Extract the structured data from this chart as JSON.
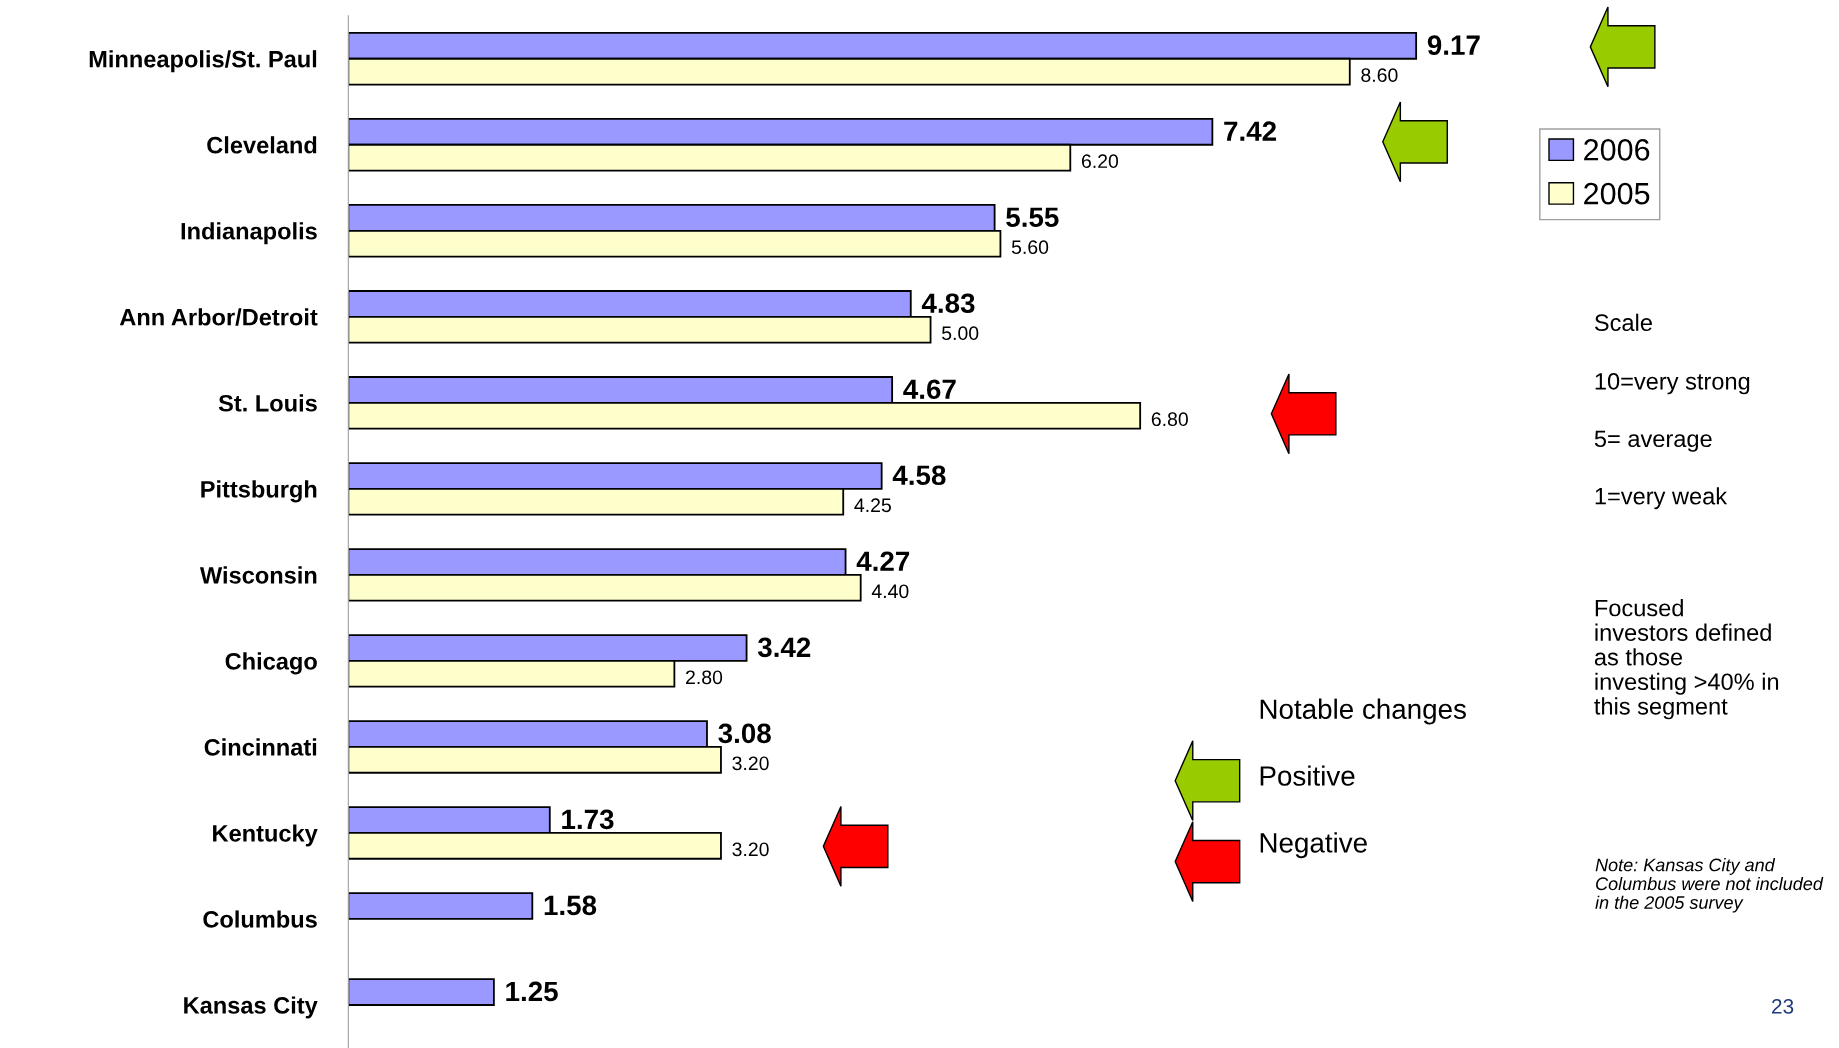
{
  "chart_data": {
    "type": "bar",
    "orientation": "horizontal",
    "categories": [
      "Minneapolis/St. Paul",
      "Cleveland",
      "Indianapolis",
      "Ann Arbor/Detroit",
      "St. Louis",
      "Pittsburgh",
      "Wisconsin",
      "Chicago",
      "Cincinnati",
      "Kentucky",
      "Columbus",
      "Kansas City"
    ],
    "series": [
      {
        "name": "2006",
        "color": "#9999ff",
        "values": [
          9.17,
          7.42,
          5.55,
          4.83,
          4.67,
          4.58,
          4.27,
          3.42,
          3.08,
          1.73,
          1.58,
          1.25
        ],
        "value_labels": [
          "9.17",
          "7.42",
          "5.55",
          "4.83",
          "4.67",
          "4.58",
          "4.27",
          "3.42",
          "3.08",
          "1.73",
          "1.58",
          "1.25"
        ]
      },
      {
        "name": "2005",
        "color": "#ffffcc",
        "values": [
          8.6,
          6.2,
          5.6,
          5.0,
          6.8,
          4.25,
          4.4,
          2.8,
          3.2,
          3.2,
          null,
          null
        ],
        "value_labels": [
          "8.60",
          "6.20",
          "5.60",
          "5.00",
          "6.80",
          "4.25",
          "4.40",
          "2.80",
          "3.20",
          "3.20",
          null,
          null
        ]
      }
    ],
    "legend": "top right",
    "annotations": [
      "Scale",
      "10=very strong",
      "5= average",
      "1=very weak",
      "Focused investors defined as those investing >40% in this segment",
      "Notable changes",
      "Positive",
      "Negative",
      "Note: Kansas City and Columbus were not included in the 2005 survey",
      "23"
    ]
  }
}
